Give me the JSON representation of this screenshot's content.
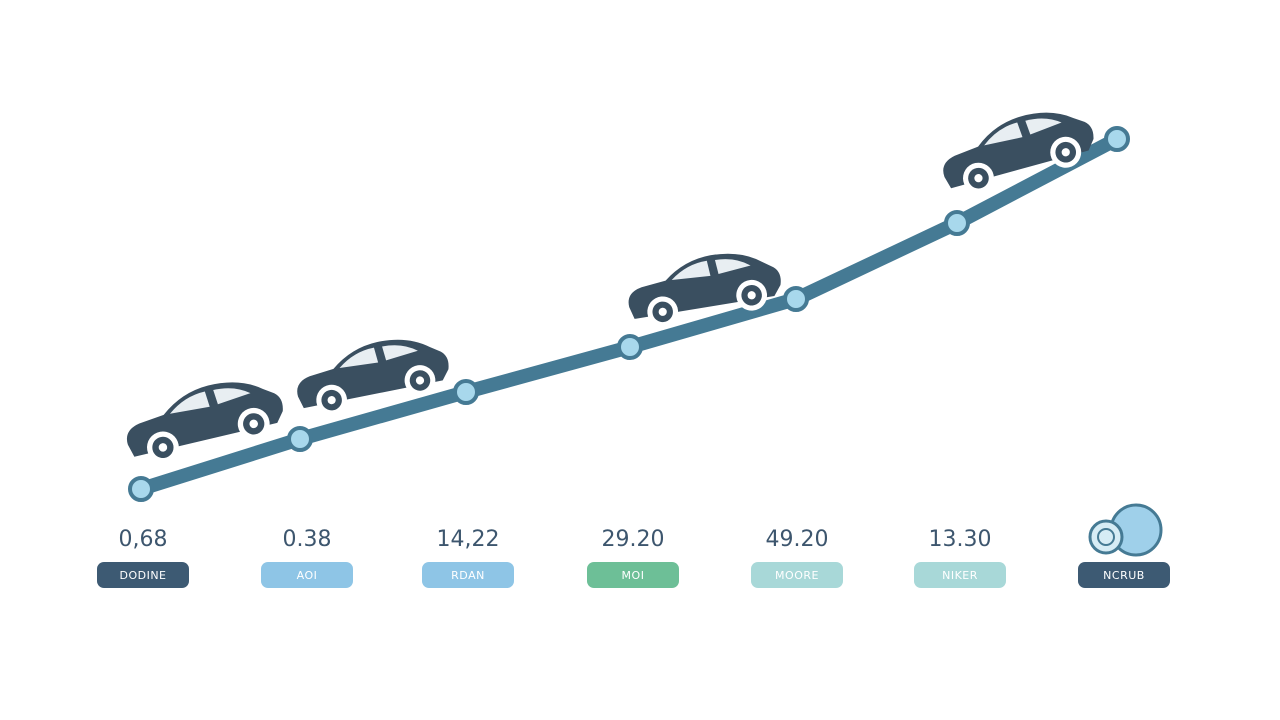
{
  "items": [
    {
      "value": "0,68",
      "tag": "DODINE"
    },
    {
      "value": "0.38",
      "tag": "AOI"
    },
    {
      "value": "14,22",
      "tag": "RDAN"
    },
    {
      "value": "29.20",
      "tag": "MOI"
    },
    {
      "value": "49.20",
      "tag": "MOORE"
    },
    {
      "value": "13.30",
      "tag": "NIKER"
    },
    {
      "tag": "NCRUB"
    }
  ]
}
